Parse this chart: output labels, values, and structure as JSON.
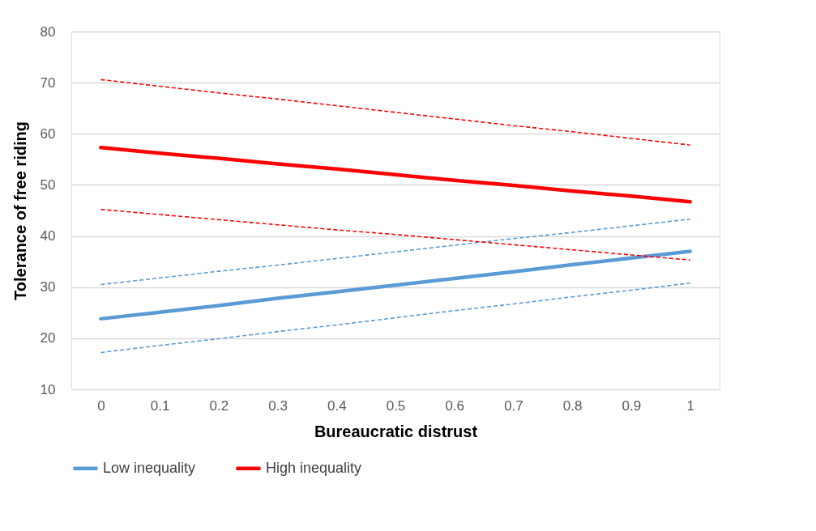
{
  "chart_data": {
    "type": "line",
    "xlabel": "Bureaucratic distrust",
    "ylabel": "Tolerance of free riding",
    "categories": [
      "0",
      "0.1",
      "0.2",
      "0.3",
      "0.4",
      "0.5",
      "0.6",
      "0.7",
      "0.8",
      "0.9",
      "1"
    ],
    "ylim": [
      10,
      80
    ],
    "yticks": [
      10,
      20,
      30,
      40,
      50,
      60,
      70,
      80
    ],
    "grid": "y",
    "legend": "bottom",
    "series": [
      {
        "name": "Low inequality",
        "color": "#5b9bd5",
        "line_style": "solid",
        "values": [
          23.8,
          25.1,
          26.4,
          27.8,
          29.1,
          30.4,
          31.7,
          33.0,
          34.4,
          35.7,
          37.0
        ]
      },
      {
        "name": "High inequality",
        "color": "#ff0000",
        "line_style": "solid",
        "values": [
          57.3,
          56.2,
          55.2,
          54.1,
          53.1,
          52.0,
          50.9,
          49.9,
          48.8,
          47.8,
          46.7
        ]
      },
      {
        "color": "#5b9bd5",
        "line_style": "dashed",
        "values": [
          30.5,
          31.8,
          33.1,
          34.3,
          35.6,
          36.9,
          38.2,
          39.5,
          40.7,
          42.0,
          43.3
        ]
      },
      {
        "color": "#5b9bd5",
        "line_style": "dashed",
        "values": [
          17.2,
          18.6,
          19.9,
          21.3,
          22.6,
          24.0,
          25.4,
          26.7,
          28.1,
          29.4,
          30.8
        ]
      },
      {
        "color": "#ff0000",
        "line_style": "dashed",
        "values": [
          70.6,
          69.3,
          68.0,
          66.8,
          65.5,
          64.2,
          62.9,
          61.6,
          60.4,
          59.1,
          57.8
        ]
      },
      {
        "color": "#ff0000",
        "line_style": "dashed",
        "values": [
          45.2,
          44.2,
          43.2,
          42.2,
          41.2,
          40.3,
          39.3,
          38.3,
          37.3,
          36.3,
          35.3
        ]
      }
    ]
  }
}
